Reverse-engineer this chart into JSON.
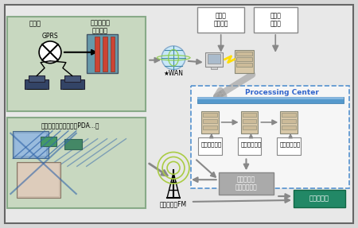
{
  "bg_color": "#f0f0f0",
  "title": "",
  "fig_bg": "#d8d8d8",
  "top_box1_label": "浮动车\n数据接收",
  "top_box2_label": "浮动车\n数据库",
  "processing_center_label": "Processing Center",
  "green_box1_title": "浮动车",
  "green_box1_sub": "商用车调度\n管理系统",
  "green_box1_gprs": "GPRS",
  "green_box2_title": "终端（导航仪、手机、PDA...）",
  "wan_label": "★WAN",
  "bar_label": "",
  "server_labels": [
    "行驶时间计算",
    "路况信息生成",
    "发布信息生成"
  ],
  "traffic_box_label": "多种形式的\n交通信息发布",
  "mobile_label": "移动通信、FM",
  "data_flow_label": "代表数据流",
  "colors": {
    "green_box_bg": "#c8d8c0",
    "green_box_border": "#88aa88",
    "top_box_bg": "#ffffff",
    "top_box_border": "#888888",
    "processing_box_bg": "#ffffff",
    "processing_box_border": "#4488cc",
    "processing_bar": "#5599cc",
    "server_box_bg": "#e8e0d0",
    "server_box_border": "#aaaaaa",
    "arrow_gray": "#888888",
    "traffic_box_bg": "#aaaaaa",
    "traffic_box_text": "#ffffff",
    "data_flow_box_bg": "#228866",
    "data_flow_box_text": "#ffffff",
    "processing_label_color": "#3366cc",
    "wan_star_color": "#222222"
  }
}
